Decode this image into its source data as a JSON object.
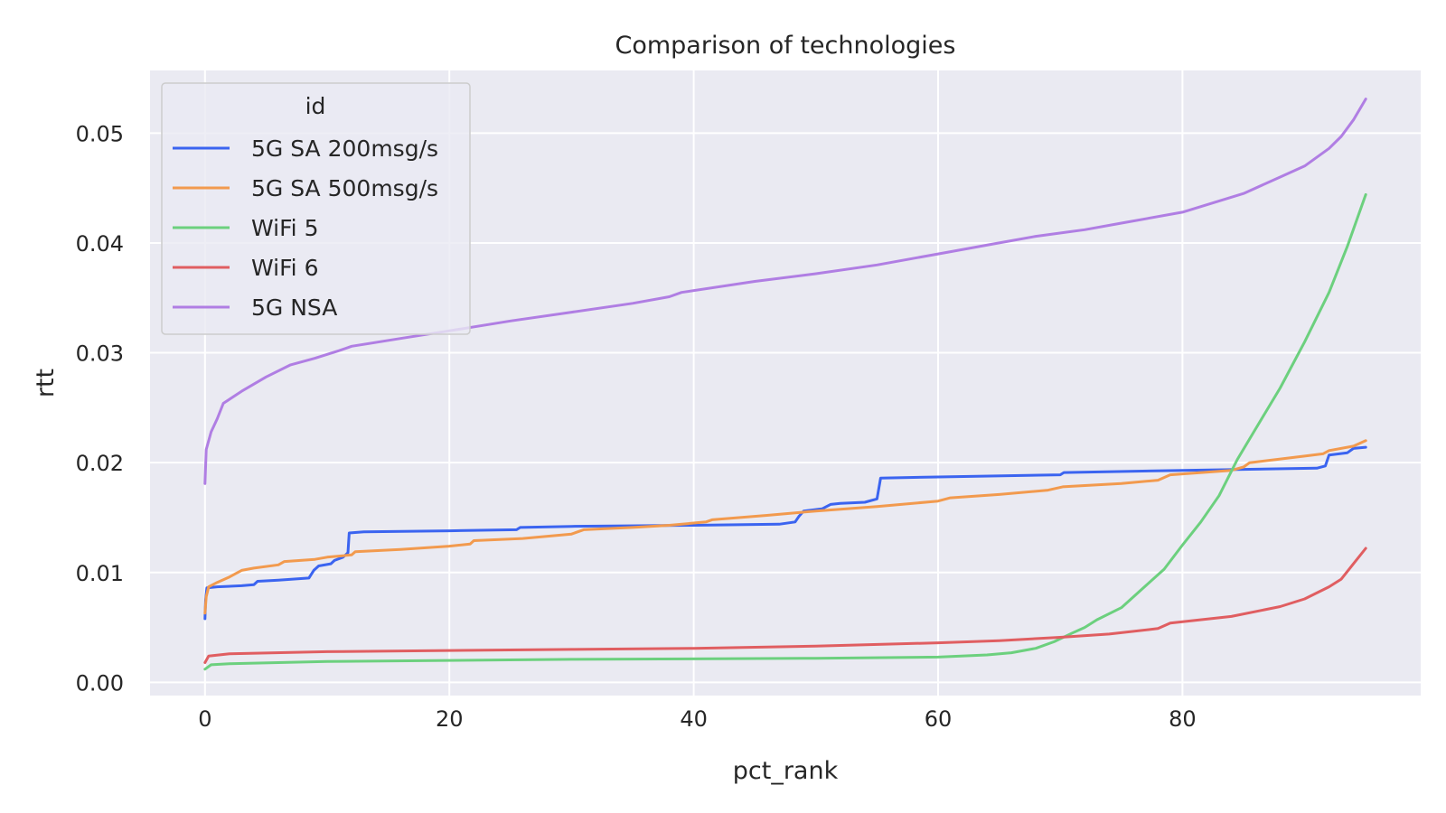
{
  "chart_data": {
    "type": "line",
    "title": "Comparison of technologies",
    "xlabel": "pct_rank",
    "ylabel": "rtt",
    "xlim": [
      -4.5,
      99.5
    ],
    "ylim": [
      -0.0012,
      0.0557
    ],
    "xticks": [
      0,
      20,
      40,
      60,
      80
    ],
    "xtick_labels": [
      "0",
      "20",
      "40",
      "60",
      "80"
    ],
    "yticks": [
      0.0,
      0.01,
      0.02,
      0.03,
      0.04,
      0.05
    ],
    "ytick_labels": [
      "0.00",
      "0.01",
      "0.02",
      "0.03",
      "0.04",
      "0.05"
    ],
    "grid": true,
    "legend": {
      "title": "id",
      "placement": "top-left"
    },
    "series": [
      {
        "name": "5G SA 200msg/s",
        "color": "#3b64f0",
        "points": [
          [
            0,
            0.0058
          ],
          [
            0.05,
            0.0075
          ],
          [
            0.15,
            0.0086
          ],
          [
            1,
            0.0087
          ],
          [
            3,
            0.0088
          ],
          [
            4,
            0.0089
          ],
          [
            4.3,
            0.0092
          ],
          [
            6,
            0.0093
          ],
          [
            8.5,
            0.0095
          ],
          [
            8.9,
            0.0102
          ],
          [
            9.3,
            0.0106
          ],
          [
            10.3,
            0.0108
          ],
          [
            10.6,
            0.0111
          ],
          [
            11.3,
            0.0114
          ],
          [
            11.7,
            0.0118
          ],
          [
            11.8,
            0.0136
          ],
          [
            13,
            0.0137
          ],
          [
            20,
            0.0138
          ],
          [
            25.5,
            0.0139
          ],
          [
            25.8,
            0.0141
          ],
          [
            30,
            0.0142
          ],
          [
            40,
            0.0143
          ],
          [
            47,
            0.0144
          ],
          [
            48.3,
            0.0146
          ],
          [
            48.6,
            0.0151
          ],
          [
            49,
            0.0156
          ],
          [
            50.5,
            0.0158
          ],
          [
            51.2,
            0.0162
          ],
          [
            52,
            0.0163
          ],
          [
            54,
            0.0164
          ],
          [
            55,
            0.0167
          ],
          [
            55.3,
            0.0186
          ],
          [
            60,
            0.0187
          ],
          [
            70,
            0.0189
          ],
          [
            70.3,
            0.0191
          ],
          [
            80,
            0.0193
          ],
          [
            91,
            0.0195
          ],
          [
            91.7,
            0.0197
          ],
          [
            92,
            0.0207
          ],
          [
            93.5,
            0.0209
          ],
          [
            94,
            0.0213
          ],
          [
            95,
            0.0214
          ]
        ]
      },
      {
        "name": "5G SA 500msg/s",
        "color": "#f29a4e",
        "points": [
          [
            0,
            0.0063
          ],
          [
            0.1,
            0.0078
          ],
          [
            0.3,
            0.0087
          ],
          [
            1,
            0.0091
          ],
          [
            2,
            0.0096
          ],
          [
            3,
            0.0102
          ],
          [
            4,
            0.0104
          ],
          [
            6,
            0.0107
          ],
          [
            6.5,
            0.011
          ],
          [
            9,
            0.0112
          ],
          [
            10,
            0.0114
          ],
          [
            12,
            0.0116
          ],
          [
            12.3,
            0.0119
          ],
          [
            16,
            0.0121
          ],
          [
            20,
            0.0124
          ],
          [
            21.7,
            0.0126
          ],
          [
            22,
            0.0129
          ],
          [
            26,
            0.0131
          ],
          [
            30,
            0.0135
          ],
          [
            31,
            0.0139
          ],
          [
            35,
            0.0141
          ],
          [
            38,
            0.0143
          ],
          [
            41,
            0.0146
          ],
          [
            41.5,
            0.0148
          ],
          [
            46,
            0.0152
          ],
          [
            50,
            0.0156
          ],
          [
            55,
            0.016
          ],
          [
            60,
            0.0165
          ],
          [
            61,
            0.0168
          ],
          [
            65,
            0.0171
          ],
          [
            69,
            0.0175
          ],
          [
            70.2,
            0.0178
          ],
          [
            75,
            0.0181
          ],
          [
            78,
            0.0184
          ],
          [
            79,
            0.0189
          ],
          [
            84,
            0.0193
          ],
          [
            85,
            0.0196
          ],
          [
            85.5,
            0.02
          ],
          [
            90,
            0.0206
          ],
          [
            91.5,
            0.0208
          ],
          [
            92,
            0.0211
          ],
          [
            94,
            0.0215
          ],
          [
            95,
            0.022
          ]
        ]
      },
      {
        "name": "WiFi 5",
        "color": "#6cd07e",
        "points": [
          [
            0,
            0.0012
          ],
          [
            0.5,
            0.0016
          ],
          [
            2,
            0.0017
          ],
          [
            10,
            0.0019
          ],
          [
            30,
            0.0021
          ],
          [
            50,
            0.0022
          ],
          [
            60,
            0.0023
          ],
          [
            64,
            0.0025
          ],
          [
            66,
            0.0027
          ],
          [
            68,
            0.0031
          ],
          [
            69.5,
            0.0037
          ],
          [
            71,
            0.0045
          ],
          [
            72,
            0.005
          ],
          [
            73,
            0.0057
          ],
          [
            75,
            0.0068
          ],
          [
            77,
            0.0088
          ],
          [
            78.5,
            0.0103
          ],
          [
            80,
            0.0125
          ],
          [
            81.5,
            0.0146
          ],
          [
            83,
            0.017
          ],
          [
            84.5,
            0.0203
          ],
          [
            86,
            0.0231
          ],
          [
            88,
            0.0268
          ],
          [
            90,
            0.031
          ],
          [
            92,
            0.0355
          ],
          [
            93.5,
            0.0397
          ],
          [
            95,
            0.0444
          ]
        ]
      },
      {
        "name": "WiFi 6",
        "color": "#e05e61",
        "points": [
          [
            0,
            0.0018
          ],
          [
            0.3,
            0.0024
          ],
          [
            2,
            0.0026
          ],
          [
            10,
            0.0028
          ],
          [
            30,
            0.003
          ],
          [
            40,
            0.0031
          ],
          [
            50,
            0.0033
          ],
          [
            60,
            0.0036
          ],
          [
            65,
            0.0038
          ],
          [
            70,
            0.0041
          ],
          [
            74,
            0.0044
          ],
          [
            78,
            0.0049
          ],
          [
            79,
            0.0054
          ],
          [
            84,
            0.006
          ],
          [
            88,
            0.0069
          ],
          [
            90,
            0.0076
          ],
          [
            92,
            0.0087
          ],
          [
            93,
            0.0094
          ],
          [
            94,
            0.0108
          ],
          [
            95,
            0.0122
          ]
        ]
      },
      {
        "name": "5G NSA",
        "color": "#b07ee3",
        "points": [
          [
            0,
            0.0181
          ],
          [
            0.1,
            0.0212
          ],
          [
            0.5,
            0.0228
          ],
          [
            1,
            0.024
          ],
          [
            1.5,
            0.0254
          ],
          [
            3,
            0.0265
          ],
          [
            5,
            0.0278
          ],
          [
            7,
            0.0289
          ],
          [
            9,
            0.0295
          ],
          [
            11,
            0.0302
          ],
          [
            12,
            0.0306
          ],
          [
            16,
            0.0313
          ],
          [
            20,
            0.032
          ],
          [
            25,
            0.0329
          ],
          [
            30,
            0.0337
          ],
          [
            35,
            0.0345
          ],
          [
            38,
            0.0351
          ],
          [
            39,
            0.0355
          ],
          [
            45,
            0.0365
          ],
          [
            50,
            0.0372
          ],
          [
            55,
            0.038
          ],
          [
            60,
            0.039
          ],
          [
            65,
            0.04
          ],
          [
            68,
            0.0406
          ],
          [
            72,
            0.0412
          ],
          [
            75,
            0.0418
          ],
          [
            80,
            0.0428
          ],
          [
            85,
            0.0445
          ],
          [
            88,
            0.046
          ],
          [
            90,
            0.047
          ],
          [
            92,
            0.0486
          ],
          [
            93,
            0.0497
          ],
          [
            94,
            0.0512
          ],
          [
            95,
            0.0531
          ]
        ]
      }
    ]
  }
}
